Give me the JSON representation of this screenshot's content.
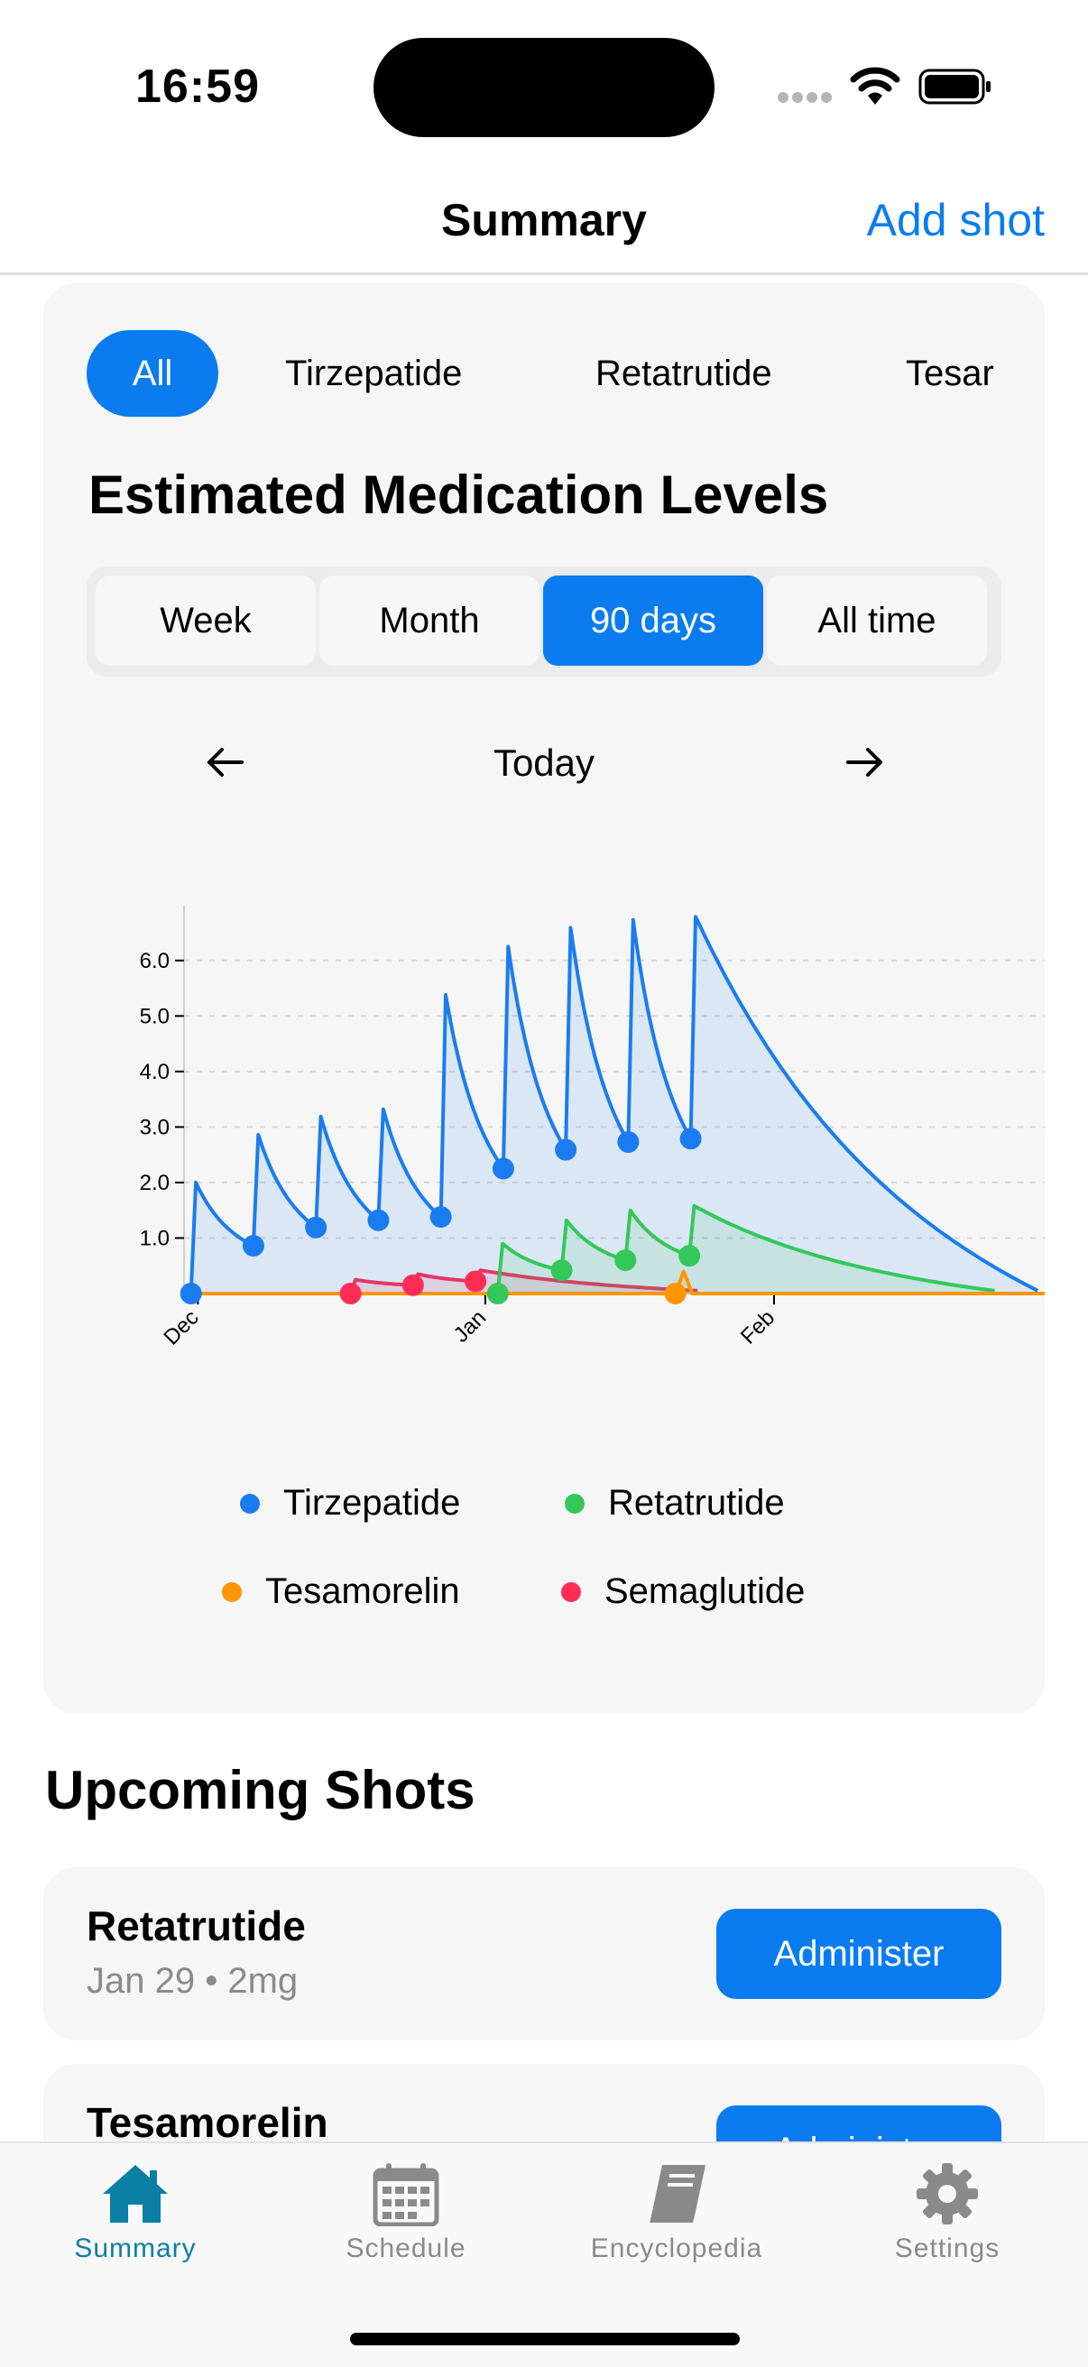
{
  "status_bar": {
    "time": "16:59"
  },
  "nav": {
    "title": "Summary",
    "add_shot": "Add shot"
  },
  "filters": [
    "All",
    "Tirzepatide",
    "Retatrutide",
    "Tesar"
  ],
  "card": {
    "title": "Estimated Medication Levels",
    "ranges": [
      "Week",
      "Month",
      "90 days",
      "All time"
    ],
    "selected_range": "90 days",
    "nav": {
      "prev_icon": "arrow-left-icon",
      "label": "Today",
      "next_icon": "arrow-right-icon"
    }
  },
  "chart_data": {
    "type": "area",
    "y_ticks": [
      "1.0",
      "2.0",
      "3.0",
      "4.0",
      "5.0",
      "6.0"
    ],
    "x_ticks": [
      "Dec",
      "Jan",
      "Feb"
    ],
    "ylim": [
      0,
      6.5
    ],
    "grid": true,
    "legend_placement": "bottom",
    "series": [
      {
        "name": "Tirzepatide",
        "color": "#1a7cf0",
        "doses_x": [
          0.5,
          5.0,
          9.5,
          14.0,
          18.5,
          23.0,
          27.5,
          32.0,
          36.5
        ],
        "dose_amounts": [
          2.0,
          2.0,
          2.0,
          2.0,
          4.0,
          4.0,
          4.0,
          4.0,
          4.0
        ],
        "trough_values": [
          0.0,
          0.86,
          1.19,
          1.32,
          1.38,
          2.25,
          2.59,
          2.73,
          2.79
        ],
        "peak_values": [
          2.0,
          2.86,
          3.19,
          3.32,
          5.38,
          6.25,
          6.59,
          6.73,
          6.79
        ]
      },
      {
        "name": "Retatrutide",
        "color": "#34c759",
        "doses_x": [
          22.6,
          27.2,
          31.8,
          36.4
        ],
        "trough_values": [
          0.0,
          0.42,
          0.6,
          0.68
        ],
        "peak_values": [
          0.9,
          1.32,
          1.5,
          1.58
        ]
      },
      {
        "name": "Tesamorelin",
        "color": "#ff9500",
        "doses_x": [
          36.0
        ],
        "peak_values": [
          0.4
        ]
      },
      {
        "name": "Semaglutide",
        "color": "#ff2d55",
        "doses_x": [
          12.0,
          16.5,
          21.0
        ],
        "trough_values": [
          0.0,
          0.15,
          0.22
        ],
        "peak_values": [
          0.25,
          0.35,
          0.42
        ]
      }
    ]
  },
  "legend": [
    {
      "name": "Tirzepatide",
      "color": "#1a7cf0"
    },
    {
      "name": "Retatrutide",
      "color": "#34c759"
    },
    {
      "name": "Tesamorelin",
      "color": "#ff9500"
    },
    {
      "name": "Semaglutide",
      "color": "#ff2d55"
    }
  ],
  "upcoming": {
    "title": "Upcoming Shots",
    "items": [
      {
        "name": "Retatrutide",
        "date": "Jan 29",
        "dose": "2mg",
        "detail": "Jan 29 • 2mg",
        "action": "Administer"
      },
      {
        "name": "Tesamorelin",
        "action": "Administer"
      }
    ]
  },
  "tabs": [
    {
      "label": "Summary",
      "icon": "house-icon",
      "active": true
    },
    {
      "label": "Schedule",
      "icon": "calendar-icon",
      "active": false
    },
    {
      "label": "Encyclopedia",
      "icon": "book-icon",
      "active": false
    },
    {
      "label": "Settings",
      "icon": "gear-icon",
      "active": false
    }
  ]
}
